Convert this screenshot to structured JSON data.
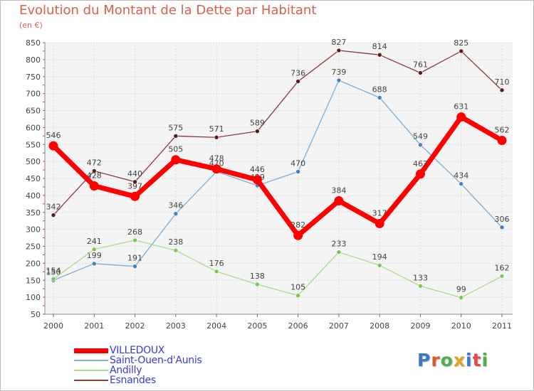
{
  "title": "Evolution du Montant de la Dette par Habitant",
  "subtitle": "(en €)",
  "logo": {
    "text": "Proxiti",
    "colors": [
      "#3a78c9",
      "#d95b2a",
      "#4caf50",
      "#e0a420",
      "#3a78c9",
      "#e04a4a",
      "#4caf50"
    ]
  },
  "chart_data": {
    "type": "line",
    "categories": [
      "2000",
      "2001",
      "2002",
      "2003",
      "2004",
      "2005",
      "2006",
      "2007",
      "2008",
      "2009",
      "2010",
      "2011"
    ],
    "ylim": [
      50,
      850
    ],
    "yticks": [
      50,
      100,
      150,
      200,
      250,
      300,
      350,
      400,
      450,
      500,
      550,
      600,
      650,
      700,
      750,
      800,
      850
    ],
    "grid": true,
    "legend_position": "bottom-left",
    "series": [
      {
        "name": "Esnandes",
        "color": "#8c3a3a",
        "marker": "#5c1a1a",
        "emphasis": false,
        "values": [
          342,
          472,
          440,
          575,
          571,
          589,
          736,
          827,
          814,
          761,
          825,
          710
        ]
      },
      {
        "name": "Saint-Ouen-d'Aunis",
        "color": "#7aaed6",
        "marker": "#3f7fc9",
        "emphasis": false,
        "values": [
          150,
          199,
          191,
          346,
          470,
          429,
          470,
          739,
          688,
          549,
          434,
          306
        ]
      },
      {
        "name": "Andilly",
        "color": "#a8dc88",
        "marker": "#7cc653",
        "emphasis": false,
        "values": [
          154,
          241,
          268,
          238,
          176,
          138,
          105,
          233,
          194,
          133,
          99,
          162
        ]
      },
      {
        "name": "VILLEDOUX",
        "color": "#ff0000",
        "marker": "#ff0000",
        "emphasis": true,
        "values": [
          546,
          428,
          397,
          505,
          478,
          446,
          282,
          384,
          317,
          463,
          631,
          562
        ]
      }
    ],
    "legend_order": [
      "VILLEDOUX",
      "Saint-Ouen-d'Aunis",
      "Andilly",
      "Esnandes"
    ]
  }
}
